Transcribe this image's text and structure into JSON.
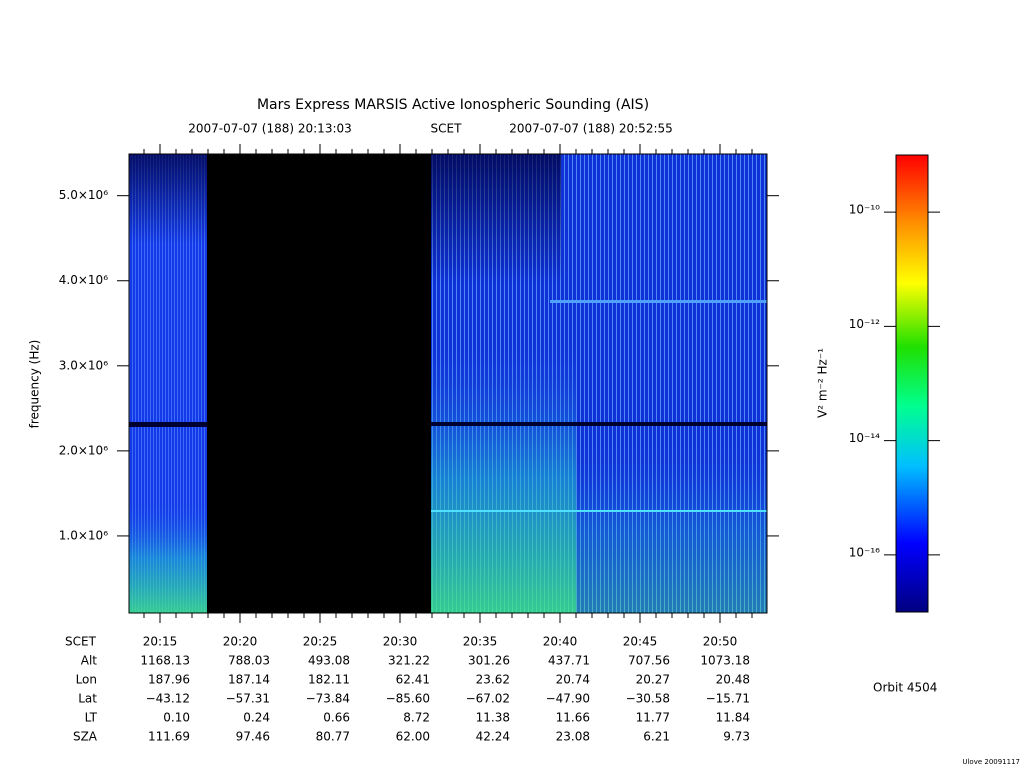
{
  "chart_data": {
    "type": "spectrogram",
    "title": "Mars Express MARSIS Active Ionospheric Sounding (AIS)",
    "start": "2007-07-07 (188) 20:13:03",
    "time_system": "SCET",
    "end": "2007-07-07 (188) 20:52:55",
    "ylabel": "frequency (Hz)",
    "ylim": [
      94000,
      5490000
    ],
    "yticks": [
      {
        "value": 1000000,
        "label": "1.0×10⁶"
      },
      {
        "value": 2000000,
        "label": "2.0×10⁶"
      },
      {
        "value": 3000000,
        "label": "3.0×10⁶"
      },
      {
        "value": 4000000,
        "label": "4.0×10⁶"
      },
      {
        "value": 5000000,
        "label": "5.0×10⁶"
      }
    ],
    "xticks": [
      "20:15",
      "20:20",
      "20:25",
      "20:30",
      "20:35",
      "20:40",
      "20:45",
      "20:50"
    ],
    "colorbar": {
      "label": "V² m⁻² Hz⁻¹",
      "log": true,
      "zlim": [
        1e-17,
        1e-09
      ],
      "ticks": [
        {
          "value": 1e-16,
          "label": "10⁻¹⁶"
        },
        {
          "value": 1e-14,
          "label": "10⁻¹⁴"
        },
        {
          "value": 1e-12,
          "label": "10⁻¹²"
        },
        {
          "value": 1e-10,
          "label": "10⁻¹⁰"
        }
      ]
    },
    "ephemeris": {
      "time_label": "SCET",
      "rows": [
        {
          "label": "Alt",
          "values": [
            "1168.13",
            "788.03",
            "493.08",
            "321.22",
            "301.26",
            "437.71",
            "707.56",
            "1073.18"
          ]
        },
        {
          "label": "Lon",
          "values": [
            "187.96",
            "187.14",
            "182.11",
            "62.41",
            "23.62",
            "20.74",
            "20.27",
            "20.48"
          ]
        },
        {
          "label": "Lat",
          "values": [
            "−43.12",
            "−57.31",
            "−73.84",
            "−85.60",
            "−67.02",
            "−47.90",
            "−30.58",
            "−15.71"
          ]
        },
        {
          "label": "LT",
          "values": [
            "0.10",
            "0.24",
            "0.66",
            "8.72",
            "11.38",
            "11.66",
            "11.77",
            "11.84"
          ]
        },
        {
          "label": "SZA",
          "values": [
            "111.69",
            "97.46",
            "80.77",
            "62.00",
            "42.24",
            "23.08",
            "6.21",
            "9.73"
          ]
        }
      ]
    },
    "orbit": "Orbit 4504",
    "footer": "Ulove 20091117"
  }
}
